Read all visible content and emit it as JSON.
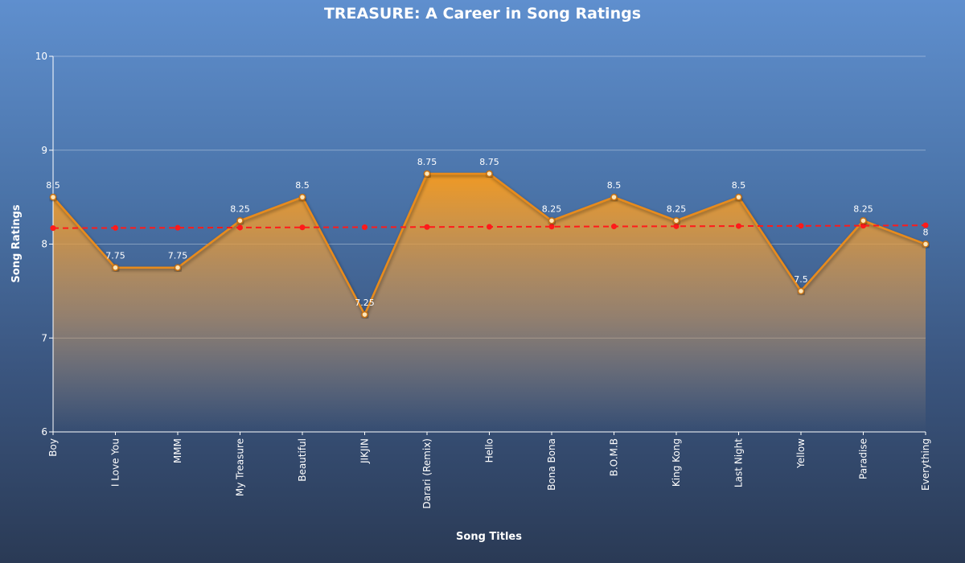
{
  "chart_data": {
    "type": "area",
    "title": "TREASURE: A Career in Song Ratings",
    "xlabel": "Song Titles",
    "ylabel": "Song Ratings",
    "ylim": [
      6,
      10
    ],
    "yticks": [
      6,
      7,
      8,
      9,
      10
    ],
    "categories": [
      "Boy",
      "I Love You",
      "MMM",
      "My Treasure",
      "Beautiful",
      "JIKJIN",
      "Darari (Remix)",
      "Hello",
      "Bona Bona",
      "B.O.M.B",
      "King Kong",
      "Last Night",
      "Yellow",
      "Paradise",
      "Everything"
    ],
    "series": [
      {
        "values": [
          8.5,
          7.75,
          7.75,
          8.25,
          8.5,
          7.25,
          8.75,
          8.75,
          8.25,
          8.5,
          8.25,
          8.5,
          7.5,
          8.25,
          8
        ],
        "color": "#e88b1c"
      }
    ],
    "trend_values": [
      8.17,
      8.172,
      8.174,
      8.176,
      8.178,
      8.18,
      8.182,
      8.184,
      8.186,
      8.188,
      8.19,
      8.192,
      8.194,
      8.196,
      8.2
    ],
    "trend_color": "#ff1a1a",
    "grid": true,
    "legend": "none"
  }
}
